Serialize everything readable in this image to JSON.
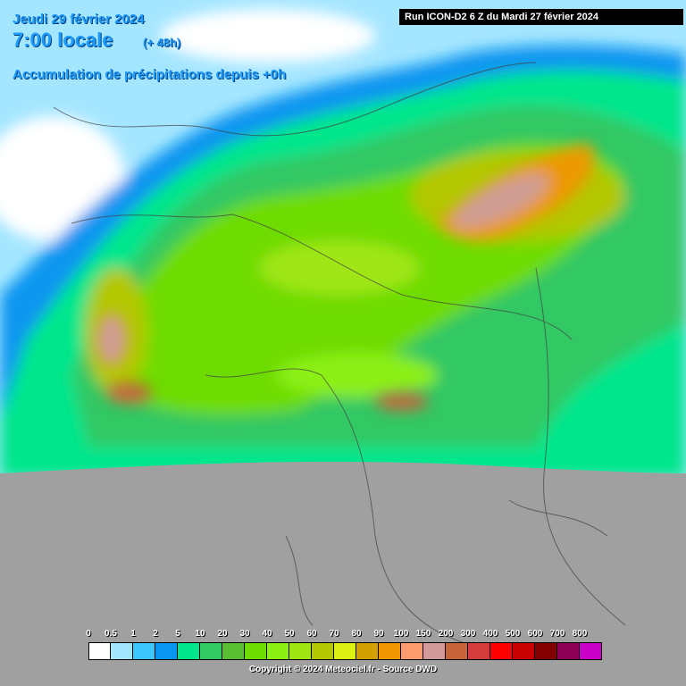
{
  "header": {
    "date": "Jeudi 29 février 2024",
    "time": "7:00 locale",
    "lead": "(+ 48h)",
    "subtitle": "Accumulation de précipitations depuis +0h",
    "run": "Run ICON-D2 6 Z du Mardi 27 février 2024"
  },
  "legend": {
    "items": [
      {
        "label": "0",
        "color": "#ffffff"
      },
      {
        "label": "0.5",
        "color": "#a5e6ff"
      },
      {
        "label": "1",
        "color": "#3cc8ff"
      },
      {
        "label": "2",
        "color": "#0a96f0"
      },
      {
        "label": "5",
        "color": "#00e68c"
      },
      {
        "label": "10",
        "color": "#32c864"
      },
      {
        "label": "20",
        "color": "#5abe32"
      },
      {
        "label": "30",
        "color": "#6edc00"
      },
      {
        "label": "40",
        "color": "#8cf014"
      },
      {
        "label": "50",
        "color": "#a0e614"
      },
      {
        "label": "60",
        "color": "#b4c800"
      },
      {
        "label": "70",
        "color": "#dcf014"
      },
      {
        "label": "80",
        "color": "#d2a000"
      },
      {
        "label": "90",
        "color": "#f09600"
      },
      {
        "label": "100",
        "color": "#ff9b6e"
      },
      {
        "label": "150",
        "color": "#d29b9b"
      },
      {
        "label": "200",
        "color": "#c8643c"
      },
      {
        "label": "300",
        "color": "#d23c3c"
      },
      {
        "label": "400",
        "color": "#ff0000"
      },
      {
        "label": "500",
        "color": "#c80000"
      },
      {
        "label": "600",
        "color": "#820000"
      },
      {
        "label": "700",
        "color": "#8c0055"
      },
      {
        "label": "800",
        "color": "#c800c8"
      }
    ]
  },
  "footer": {
    "copyright": "Copyright © 2024 Meteociel.fr - Source DWD"
  }
}
